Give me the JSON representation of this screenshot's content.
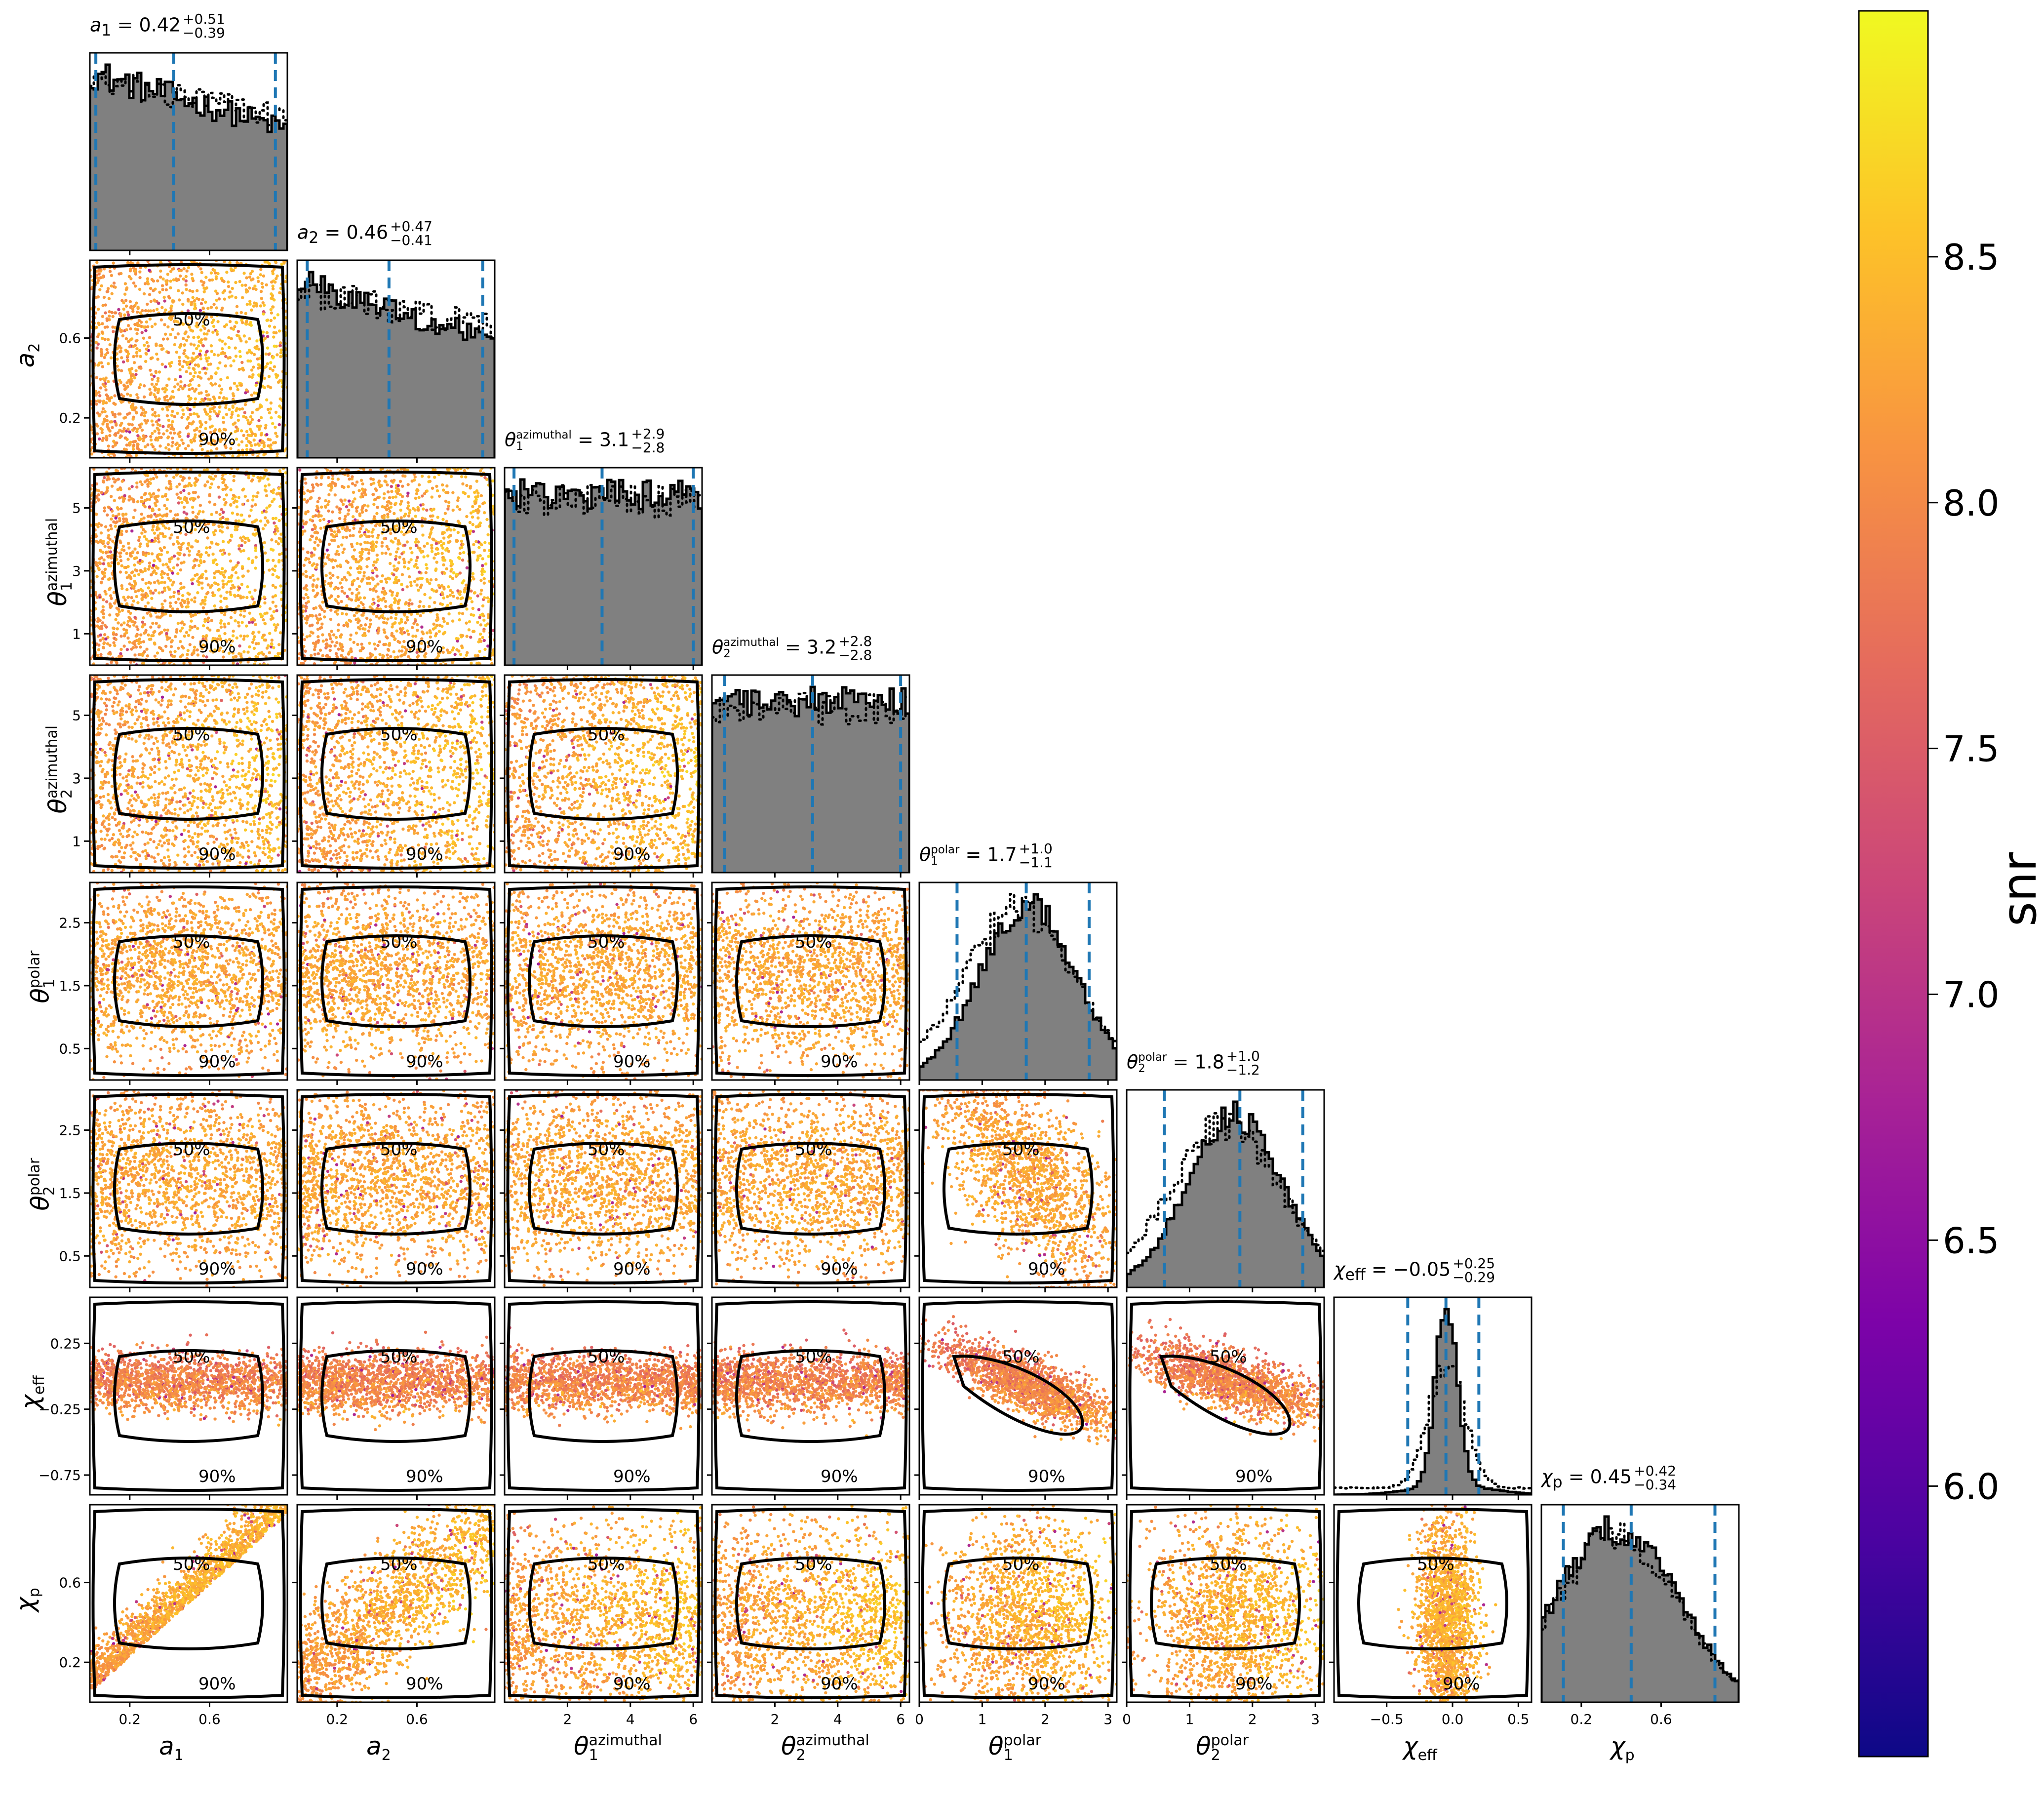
{
  "parameters": [
    {
      "key": "a1",
      "sym": "a",
      "sub": "1",
      "sup": "",
      "median": "0.42",
      "plus": "+0.51",
      "minus": "−0.39",
      "range": [
        0,
        0.99
      ],
      "ticks": [
        0.2,
        0.6
      ],
      "ticklabels": [
        "0.2",
        "0.6"
      ],
      "q": [
        0.03,
        0.42,
        0.93
      ],
      "dist": "declining"
    },
    {
      "key": "a2",
      "sym": "a",
      "sub": "2",
      "sup": "",
      "median": "0.46",
      "plus": "+0.47",
      "minus": "−0.41",
      "range": [
        0,
        0.99
      ],
      "ticks": [
        0.2,
        0.6
      ],
      "ticklabels": [
        "0.2",
        "0.6"
      ],
      "q": [
        0.05,
        0.46,
        0.93
      ],
      "dist": "declining"
    },
    {
      "key": "t1az",
      "sym": "θ",
      "sub": "1",
      "sup": "azimuthal",
      "median": "3.1",
      "plus": "+2.9",
      "minus": "−2.8",
      "range": [
        0,
        6.28
      ],
      "ticks": [
        1,
        3,
        5
      ],
      "ticklabels": [
        "1",
        "3",
        "5"
      ],
      "xticks": [
        2,
        4,
        6
      ],
      "xticklabels": [
        "2",
        "4",
        "6"
      ],
      "q": [
        0.3,
        3.1,
        6.0
      ],
      "dist": "uniform"
    },
    {
      "key": "t2az",
      "sym": "θ",
      "sub": "2",
      "sup": "azimuthal",
      "median": "3.2",
      "plus": "+2.8",
      "minus": "−2.8",
      "range": [
        0,
        6.28
      ],
      "ticks": [
        1,
        3,
        5
      ],
      "ticklabels": [
        "1",
        "3",
        "5"
      ],
      "xticks": [
        2,
        4,
        6
      ],
      "xticklabels": [
        "2",
        "4",
        "6"
      ],
      "q": [
        0.4,
        3.2,
        6.0
      ],
      "dist": "uniform"
    },
    {
      "key": "t1p",
      "sym": "θ",
      "sub": "1",
      "sup": "polar",
      "median": "1.7",
      "plus": "+1.0",
      "minus": "−1.1",
      "range": [
        0,
        3.14
      ],
      "ticks": [
        0.5,
        1.5,
        2.5
      ],
      "ticklabels": [
        "0.5",
        "1.5",
        "2.5"
      ],
      "xticks": [
        0,
        1,
        2,
        3
      ],
      "xticklabels": [
        "0",
        "1",
        "2",
        "3"
      ],
      "q": [
        0.6,
        1.7,
        2.7
      ],
      "dist": "bell"
    },
    {
      "key": "t2p",
      "sym": "θ",
      "sub": "2",
      "sup": "polar",
      "median": "1.8",
      "plus": "+1.0",
      "minus": "−1.2",
      "range": [
        0,
        3.14
      ],
      "ticks": [
        0.5,
        1.5,
        2.5
      ],
      "ticklabels": [
        "0.5",
        "1.5",
        "2.5"
      ],
      "xticks": [
        0,
        1,
        2,
        3
      ],
      "xticklabels": [
        "0",
        "1",
        "2",
        "3"
      ],
      "q": [
        0.6,
        1.8,
        2.8
      ],
      "dist": "bell"
    },
    {
      "key": "chieff",
      "sym": "χ",
      "sub": "eff",
      "sup": "",
      "median": "−0.05",
      "plus": "+0.25",
      "minus": "−0.29",
      "range": [
        -0.9,
        0.6
      ],
      "ticks": [
        -0.75,
        -0.25,
        0.25
      ],
      "ticklabels": [
        "−0.75",
        "−0.25",
        "0.25"
      ],
      "xticks": [
        -0.5,
        0.0,
        0.5
      ],
      "xticklabels": [
        "−0.5",
        "0.0",
        "0.5"
      ],
      "q": [
        -0.34,
        -0.05,
        0.2
      ],
      "dist": "peak"
    },
    {
      "key": "chip",
      "sym": "χ",
      "sub": "p",
      "sup": "",
      "median": "0.45",
      "plus": "+0.42",
      "minus": "−0.34",
      "range": [
        0,
        0.99
      ],
      "ticks": [
        0.2,
        0.6
      ],
      "ticklabels": [
        "0.2",
        "0.6"
      ],
      "q": [
        0.11,
        0.45,
        0.87
      ],
      "dist": "broad"
    }
  ],
  "colorbar": {
    "label": "snr",
    "range": [
      5.45,
      9.0
    ],
    "ticks": [
      6.0,
      6.5,
      7.0,
      7.5,
      8.0,
      8.5
    ],
    "ticklabels": [
      "6.0",
      "6.5",
      "7.0",
      "7.5",
      "8.0",
      "8.5"
    ],
    "colormap": "plasma"
  },
  "contour_labels": [
    "50%",
    "90%"
  ],
  "colors": {
    "hist_fill": "#808080",
    "quantile_line": "#1f77b4",
    "contour": "#000000"
  },
  "chart_data": {
    "type": "scatter",
    "subtype": "corner-plot",
    "title": "",
    "series": [
      {
        "name": "a1",
        "median": 0.42,
        "upper_err": 0.51,
        "lower_err": 0.39
      },
      {
        "name": "a2",
        "median": 0.46,
        "upper_err": 0.47,
        "lower_err": 0.41
      },
      {
        "name": "theta1_azimuthal",
        "median": 3.1,
        "upper_err": 2.9,
        "lower_err": 2.8
      },
      {
        "name": "theta2_azimuthal",
        "median": 3.2,
        "upper_err": 2.8,
        "lower_err": 2.8
      },
      {
        "name": "theta1_polar",
        "median": 1.7,
        "upper_err": 1.0,
        "lower_err": 1.1
      },
      {
        "name": "theta2_polar",
        "median": 1.8,
        "upper_err": 1.0,
        "lower_err": 1.2
      },
      {
        "name": "chi_eff",
        "median": -0.05,
        "upper_err": 0.25,
        "lower_err": 0.29
      },
      {
        "name": "chi_p",
        "median": 0.45,
        "upper_err": 0.42,
        "lower_err": 0.34
      }
    ],
    "colorbar": {
      "label": "snr",
      "range": [
        5.45,
        9.0
      ]
    },
    "grid": false
  }
}
